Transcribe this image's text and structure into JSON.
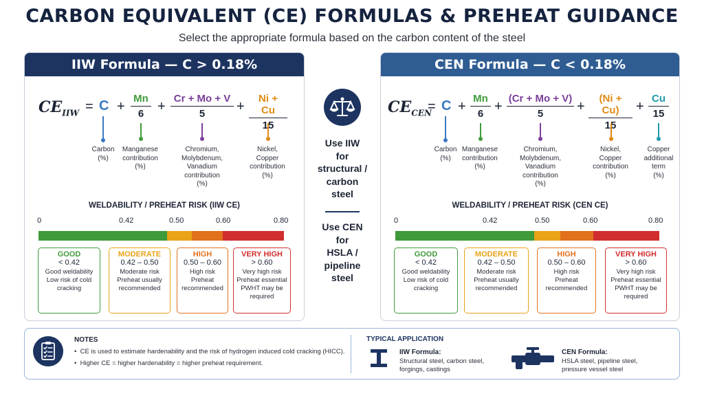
{
  "header": {
    "title": "CARBON EQUIVALENT (CE) FORMULAS & PREHEAT GUIDANCE",
    "subtitle": "Select the appropriate formula based on the carbon content of the steel"
  },
  "iiw": {
    "heading": "IIW Formula — C > 0.18%",
    "lhs_main": "CE",
    "lhs_sub": "IIW",
    "eq": "=",
    "plus": "+",
    "terms": [
      {
        "num": "C",
        "den": "",
        "color": "#3a78c2",
        "caption": "Carbon\n(%)"
      },
      {
        "num": "Mn",
        "den": "6",
        "color": "#3f9a3a",
        "caption": "Manganese\ncontribution\n(%)"
      },
      {
        "num": "Cr + Mo + V",
        "den": "5",
        "color": "#7a3f99",
        "caption": "Chromium,\nMolybdenum,\nVanadium\ncontribution\n(%)"
      },
      {
        "num": "Ni + Cu",
        "den": "15",
        "color": "#e08a12",
        "caption": "Nickel,\nCopper\ncontribution\n(%)"
      }
    ],
    "risk_title": "WELDABILITY / PREHEAT RISK (IIW CE)",
    "ticks": [
      "0",
      "0.42",
      "0.50",
      "0.60",
      "0.80"
    ],
    "scale": [
      0,
      0.42,
      0.5,
      0.6,
      0.8
    ],
    "levels": [
      {
        "name": "GOOD",
        "range": "< 0.42",
        "desc": "Good weldability\nLow risk of cold\ncracking",
        "color": "#3f9a3a"
      },
      {
        "name": "MODERATE",
        "range": "0.42 – 0.50",
        "desc": "Moderate risk\nPreheat usually\nrecommended",
        "color": "#e8a317"
      },
      {
        "name": "HIGH",
        "range": "0.50 – 0.60",
        "desc": "High risk\nPreheat\nrecommended",
        "color": "#e2711d"
      },
      {
        "name": "VERY HIGH",
        "range": "> 0.60",
        "desc": "Very high risk\nPreheat essential\nPWHT may be\nrequired",
        "color": "#d12e2e"
      }
    ]
  },
  "cen": {
    "heading": "CEN Formula — C < 0.18%",
    "lhs_main": "CE",
    "lhs_sub": "CEN",
    "eq": "=",
    "plus": "+",
    "terms": [
      {
        "num": "C",
        "den": "",
        "color": "#3a78c2",
        "caption": "Carbon\n(%)"
      },
      {
        "num": "Mn",
        "den": "6",
        "color": "#3f9a3a",
        "caption": "Manganese\ncontribution\n(%)"
      },
      {
        "num": "(Cr + Mo + V)",
        "den": "5",
        "color": "#7a3f99",
        "caption": "Chromium,\nMolybdenum,\nVanadium\ncontribution\n(%)"
      },
      {
        "num": "(Ni + Cu)",
        "den": "15",
        "color": "#e08a12",
        "caption": "Nickel,\nCopper\ncontribution\n(%)"
      },
      {
        "num": "Cu",
        "den": "15",
        "color": "#1f9aa8",
        "caption": "Copper\nadditional\nterm\n(%)"
      }
    ],
    "risk_title": "WELDABILITY / PREHEAT RISK (CEN CE)",
    "ticks": [
      "0",
      "0.42",
      "0.50",
      "0.60",
      "0.80"
    ],
    "scale": [
      0,
      0.42,
      0.5,
      0.6,
      0.8
    ],
    "levels": [
      {
        "name": "GOOD",
        "range": "< 0.42",
        "desc": "Good weldability\nLow risk of cold\ncracking",
        "color": "#3f9a3a"
      },
      {
        "name": "MODERATE",
        "range": "0.42 – 0.50",
        "desc": "Moderate risk\nPreheat usually\nrecommended",
        "color": "#e8a317"
      },
      {
        "name": "HIGH",
        "range": "0.50 – 0.60",
        "desc": "High risk\nPreheat\nrecommended",
        "color": "#e2711d"
      },
      {
        "name": "VERY HIGH",
        "range": "> 0.60",
        "desc": "Very high risk\nPreheat essential\nPWHT may be\nrequired",
        "color": "#d12e2e"
      }
    ]
  },
  "middle": {
    "icon": "balance-scale-icon",
    "use_iiw": [
      "Use IIW",
      "for",
      "structural /",
      "carbon",
      "steel"
    ],
    "use_cen": [
      "Use CEN",
      "for",
      "HSLA /",
      "pipeline",
      "steel"
    ]
  },
  "notes": {
    "icon": "clipboard-checklist-icon",
    "title": "NOTES",
    "items": [
      "CE is used to estimate hardenability and the risk of hydrogen induced cold cracking (HICC).",
      "Higher CE = higher hardenability = higher preheat requirement."
    ]
  },
  "application": {
    "title": "TYPICAL APPLICATION",
    "iiw_icon": "i-beam-icon",
    "iiw_head": "IIW Formula:",
    "iiw_desc": "Structural steel, carbon steel,\nforgings, castings",
    "cen_icon": "pipeline-valve-icon",
    "cen_head": "CEN Formula:",
    "cen_desc": "HSLA steel, pipeline steel,\npressure vessel steel"
  }
}
